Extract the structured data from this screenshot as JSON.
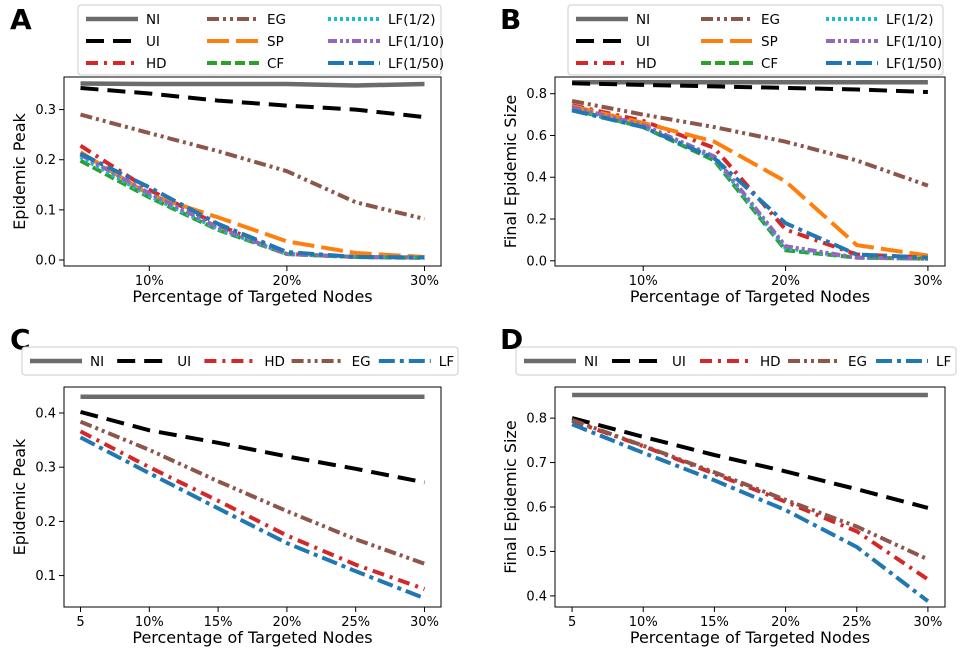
{
  "styles": {
    "NI": {
      "color": "#6b6b6b",
      "width": 4.5,
      "dash": ""
    },
    "UI": {
      "color": "#000000",
      "width": 4,
      "dash": "18 9"
    },
    "HD": {
      "color": "#d62728",
      "width": 4,
      "dash": "12 6 3 6"
    },
    "EG": {
      "color": "#8c564b",
      "width": 4,
      "dash": "12 4 3 4 3 4"
    },
    "SP": {
      "color": "#ff7f0e",
      "width": 4,
      "dash": "22 7"
    },
    "CF": {
      "color": "#2ca02c",
      "width": 4,
      "dash": "10 4"
    },
    "LF(1/2)": {
      "color": "#17becf",
      "width": 4,
      "dash": "3 3"
    },
    "LF(1/10)": {
      "color": "#9467bd",
      "width": 4,
      "dash": "9 3 3 3 3 3"
    },
    "LF(1/50)": {
      "color": "#1f77b4",
      "width": 4,
      "dash": "16 5 4 5"
    },
    "LF": {
      "color": "#1f77b4",
      "width": 4,
      "dash": "16 5 4 5"
    }
  },
  "chart_data": [
    {
      "panel": "A",
      "type": "line",
      "ylabel": "Epidemic Peak",
      "xlabel": "Percentage of Targeted Nodes",
      "xlim": [
        3.8,
        31.2
      ],
      "ylim": [
        -0.012,
        0.365
      ],
      "xticks": [
        {
          "v": 10,
          "label": "10%"
        },
        {
          "v": 20,
          "label": "20%"
        },
        {
          "v": 30,
          "label": "30%"
        }
      ],
      "yticks": [
        {
          "v": 0.0,
          "label": "0.0"
        },
        {
          "v": 0.1,
          "label": "0.1"
        },
        {
          "v": 0.2,
          "label": "0.2"
        },
        {
          "v": 0.3,
          "label": "0.3"
        }
      ],
      "legend": {
        "columns": 3,
        "placement": "top"
      },
      "series": [
        {
          "name": "NI",
          "x": [
            5,
            10,
            15,
            20,
            25,
            30
          ],
          "y": [
            0.352,
            0.351,
            0.351,
            0.351,
            0.348,
            0.351
          ]
        },
        {
          "name": "UI",
          "x": [
            5,
            10,
            15,
            20,
            25,
            30
          ],
          "y": [
            0.343,
            0.332,
            0.318,
            0.308,
            0.3,
            0.285
          ]
        },
        {
          "name": "HD",
          "x": [
            5,
            10,
            15,
            20,
            25,
            30
          ],
          "y": [
            0.228,
            0.14,
            0.07,
            0.012,
            0.006,
            0.005
          ]
        },
        {
          "name": "EG",
          "x": [
            5,
            10,
            15,
            20,
            25,
            30
          ],
          "y": [
            0.29,
            0.253,
            0.217,
            0.177,
            0.115,
            0.082
          ]
        },
        {
          "name": "SP",
          "x": [
            5,
            10,
            15,
            20,
            25,
            30
          ],
          "y": [
            0.215,
            0.13,
            0.085,
            0.037,
            0.014,
            0.006
          ]
        },
        {
          "name": "CF",
          "x": [
            5,
            10,
            15,
            20,
            25,
            30
          ],
          "y": [
            0.198,
            0.125,
            0.06,
            0.012,
            0.006,
            0.004
          ]
        },
        {
          "name": "LF(1/2)",
          "x": [
            5,
            10,
            15,
            20,
            25,
            30
          ],
          "y": [
            0.205,
            0.128,
            0.062,
            0.012,
            0.006,
            0.005
          ]
        },
        {
          "name": "LF(1/10)",
          "x": [
            5,
            10,
            15,
            20,
            25,
            30
          ],
          "y": [
            0.21,
            0.133,
            0.065,
            0.012,
            0.006,
            0.005
          ]
        },
        {
          "name": "LF(1/50)",
          "x": [
            5,
            10,
            15,
            20,
            25,
            30
          ],
          "y": [
            0.212,
            0.145,
            0.072,
            0.016,
            0.006,
            0.005
          ]
        }
      ]
    },
    {
      "panel": "B",
      "type": "line",
      "ylabel": "Final Epidemic Size",
      "xlabel": "Percentage of Targeted Nodes",
      "xlim": [
        3.8,
        31.2
      ],
      "ylim": [
        -0.025,
        0.88
      ],
      "xticks": [
        {
          "v": 10,
          "label": "10%"
        },
        {
          "v": 20,
          "label": "20%"
        },
        {
          "v": 30,
          "label": "30%"
        }
      ],
      "yticks": [
        {
          "v": 0.0,
          "label": "0.0"
        },
        {
          "v": 0.2,
          "label": "0.2"
        },
        {
          "v": 0.4,
          "label": "0.4"
        },
        {
          "v": 0.6,
          "label": "0.6"
        },
        {
          "v": 0.8,
          "label": "0.8"
        }
      ],
      "legend": {
        "columns": 3,
        "placement": "top"
      },
      "series": [
        {
          "name": "NI",
          "x": [
            5,
            10,
            15,
            20,
            25,
            30
          ],
          "y": [
            0.855,
            0.855,
            0.855,
            0.855,
            0.855,
            0.855
          ]
        },
        {
          "name": "UI",
          "x": [
            5,
            10,
            15,
            20,
            25,
            30
          ],
          "y": [
            0.85,
            0.842,
            0.835,
            0.828,
            0.82,
            0.808
          ]
        },
        {
          "name": "HD",
          "x": [
            5,
            10,
            15,
            20,
            25,
            30
          ],
          "y": [
            0.745,
            0.67,
            0.54,
            0.15,
            0.03,
            0.015
          ]
        },
        {
          "name": "EG",
          "x": [
            5,
            10,
            15,
            20,
            25,
            30
          ],
          "y": [
            0.765,
            0.7,
            0.64,
            0.57,
            0.48,
            0.36
          ]
        },
        {
          "name": "SP",
          "x": [
            5,
            10,
            15,
            20,
            25,
            30
          ],
          "y": [
            0.74,
            0.66,
            0.57,
            0.38,
            0.075,
            0.025
          ]
        },
        {
          "name": "CF",
          "x": [
            5,
            10,
            15,
            20,
            25,
            30
          ],
          "y": [
            0.725,
            0.64,
            0.48,
            0.05,
            0.015,
            0.01
          ]
        },
        {
          "name": "LF(1/2)",
          "x": [
            5,
            10,
            15,
            20,
            25,
            30
          ],
          "y": [
            0.73,
            0.645,
            0.49,
            0.06,
            0.015,
            0.01
          ]
        },
        {
          "name": "LF(1/10)",
          "x": [
            5,
            10,
            15,
            20,
            25,
            30
          ],
          "y": [
            0.735,
            0.65,
            0.5,
            0.07,
            0.015,
            0.01
          ]
        },
        {
          "name": "LF(1/50)",
          "x": [
            5,
            10,
            15,
            20,
            25,
            30
          ],
          "y": [
            0.72,
            0.64,
            0.49,
            0.18,
            0.03,
            0.015
          ]
        }
      ]
    },
    {
      "panel": "C",
      "type": "line",
      "ylabel": "Epidemic Peak",
      "xlabel": "Percentage of Targeted Nodes",
      "xlim": [
        3.8,
        31.2
      ],
      "ylim": [
        0.042,
        0.448
      ],
      "xticks": [
        {
          "v": 5,
          "label": "5"
        },
        {
          "v": 10,
          "label": "10%"
        },
        {
          "v": 15,
          "label": "15%"
        },
        {
          "v": 20,
          "label": "20%"
        },
        {
          "v": 25,
          "label": "25%"
        },
        {
          "v": 30,
          "label": "30%"
        }
      ],
      "yticks": [
        {
          "v": 0.1,
          "label": "0.1"
        },
        {
          "v": 0.2,
          "label": "0.2"
        },
        {
          "v": 0.3,
          "label": "0.3"
        },
        {
          "v": 0.4,
          "label": "0.4"
        }
      ],
      "legend": {
        "columns": 5,
        "placement": "top"
      },
      "series": [
        {
          "name": "NI",
          "x": [
            5,
            10,
            15,
            20,
            25,
            30
          ],
          "y": [
            0.43,
            0.43,
            0.43,
            0.43,
            0.43,
            0.43
          ]
        },
        {
          "name": "UI",
          "x": [
            5,
            10,
            15,
            20,
            25,
            30
          ],
          "y": [
            0.402,
            0.368,
            0.345,
            0.32,
            0.297,
            0.272
          ]
        },
        {
          "name": "HD",
          "x": [
            5,
            10,
            15,
            20,
            25,
            30
          ],
          "y": [
            0.366,
            0.3,
            0.238,
            0.174,
            0.12,
            0.075
          ]
        },
        {
          "name": "EG",
          "x": [
            5,
            10,
            15,
            20,
            25,
            30
          ],
          "y": [
            0.384,
            0.332,
            0.274,
            0.219,
            0.167,
            0.122
          ]
        },
        {
          "name": "LF",
          "x": [
            5,
            10,
            15,
            20,
            25,
            30
          ],
          "y": [
            0.355,
            0.289,
            0.224,
            0.16,
            0.108,
            0.058
          ]
        }
      ]
    },
    {
      "panel": "D",
      "type": "line",
      "ylabel": "Final Epidemic Size",
      "xlabel": "Percentage of Targeted Nodes",
      "xlim": [
        3.8,
        31.2
      ],
      "ylim": [
        0.375,
        0.87
      ],
      "xticks": [
        {
          "v": 5,
          "label": "5"
        },
        {
          "v": 10,
          "label": "10%"
        },
        {
          "v": 15,
          "label": "15%"
        },
        {
          "v": 20,
          "label": "20%"
        },
        {
          "v": 25,
          "label": "25%"
        },
        {
          "v": 30,
          "label": "30%"
        }
      ],
      "yticks": [
        {
          "v": 0.4,
          "label": "0.4"
        },
        {
          "v": 0.5,
          "label": "0.5"
        },
        {
          "v": 0.6,
          "label": "0.6"
        },
        {
          "v": 0.7,
          "label": "0.7"
        },
        {
          "v": 0.8,
          "label": "0.8"
        }
      ],
      "legend": {
        "columns": 5,
        "placement": "top"
      },
      "series": [
        {
          "name": "NI",
          "x": [
            5,
            10,
            15,
            20,
            25,
            30
          ],
          "y": [
            0.852,
            0.852,
            0.852,
            0.852,
            0.852,
            0.852
          ]
        },
        {
          "name": "UI",
          "x": [
            5,
            10,
            15,
            20,
            25,
            30
          ],
          "y": [
            0.8,
            0.758,
            0.717,
            0.68,
            0.64,
            0.598
          ]
        },
        {
          "name": "HD",
          "x": [
            5,
            10,
            15,
            20,
            25,
            30
          ],
          "y": [
            0.794,
            0.737,
            0.675,
            0.612,
            0.545,
            0.437
          ]
        },
        {
          "name": "EG",
          "x": [
            5,
            10,
            15,
            20,
            25,
            30
          ],
          "y": [
            0.796,
            0.738,
            0.678,
            0.616,
            0.556,
            0.482
          ]
        },
        {
          "name": "LF",
          "x": [
            5,
            10,
            15,
            20,
            25,
            30
          ],
          "y": [
            0.786,
            0.722,
            0.66,
            0.593,
            0.51,
            0.388
          ]
        }
      ]
    }
  ]
}
